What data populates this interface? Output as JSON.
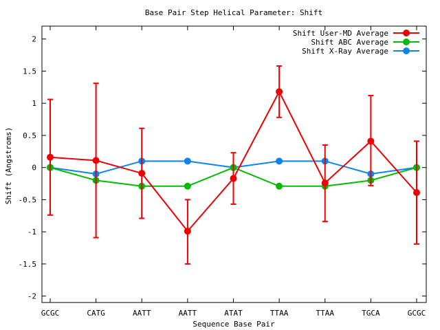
{
  "chart_data": {
    "type": "line",
    "title": "Base Pair Step Helical Parameter: Shift",
    "xlabel": "Sequence Base Pair",
    "ylabel": "Shift (Angstroms)",
    "categories": [
      "GCGC",
      "CATG",
      "AATT",
      "AATT",
      "ATAT",
      "TTAA",
      "TTAA",
      "TGCA",
      "GCGC"
    ],
    "ylim": [
      -2.1,
      2.2
    ],
    "yticks": [
      2,
      1.5,
      1,
      0.5,
      0,
      -0.5,
      -1,
      -1.5,
      -2
    ],
    "ytick_labels": [
      "2",
      "1.5",
      "1",
      "0.5",
      "0",
      "-0.5",
      "-1",
      "-1.5",
      "-2"
    ],
    "grid": false,
    "legend_position": "top-right",
    "series": [
      {
        "name": "Shift User-MD Average",
        "color": "#ee0000",
        "values": [
          0.16,
          0.11,
          -0.09,
          -0.99,
          -0.17,
          1.18,
          -0.24,
          0.41,
          -0.39
        ],
        "error_low": [
          -0.74,
          -1.09,
          -0.79,
          -1.5,
          -0.57,
          0.78,
          -0.84,
          -0.28,
          -1.19
        ],
        "error_high": [
          1.06,
          1.31,
          0.61,
          -0.5,
          0.23,
          1.58,
          0.35,
          1.12,
          0.41
        ]
      },
      {
        "name": "Shift ABC Average",
        "color": "#00bb00",
        "values": [
          0.0,
          -0.2,
          -0.29,
          -0.29,
          0.0,
          -0.29,
          -0.29,
          -0.2,
          0.0
        ]
      },
      {
        "name": "Shift X-Ray Average",
        "color": "#0a84ee",
        "values": [
          0.0,
          -0.1,
          0.1,
          0.1,
          0.0,
          0.1,
          0.1,
          -0.1,
          0.0
        ]
      }
    ]
  }
}
